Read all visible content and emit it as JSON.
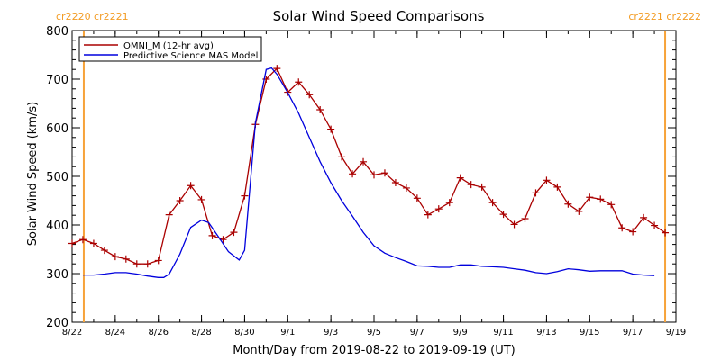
{
  "chart_data": {
    "type": "line",
    "title": "Solar Wind Speed Comparisons",
    "xlabel": "Month/Day from 2019-08-22 to 2019-09-19 (UT)",
    "ylabel": "Solar Wind Speed (km/s)",
    "xlim": [
      "2019-08-22",
      "2019-09-19"
    ],
    "ylim": [
      200,
      800
    ],
    "x_ticks": [
      {
        "x": "2019-08-22",
        "label": "8/22"
      },
      {
        "x": "2019-08-24",
        "label": "8/24"
      },
      {
        "x": "2019-08-26",
        "label": "8/26"
      },
      {
        "x": "2019-08-28",
        "label": "8/28"
      },
      {
        "x": "2019-08-30",
        "label": "8/30"
      },
      {
        "x": "2019-09-01",
        "label": "9/1"
      },
      {
        "x": "2019-09-03",
        "label": "9/3"
      },
      {
        "x": "2019-09-05",
        "label": "9/5"
      },
      {
        "x": "2019-09-07",
        "label": "9/7"
      },
      {
        "x": "2019-09-09",
        "label": "9/9"
      },
      {
        "x": "2019-09-11",
        "label": "9/11"
      },
      {
        "x": "2019-09-13",
        "label": "9/13"
      },
      {
        "x": "2019-09-15",
        "label": "9/15"
      },
      {
        "x": "2019-09-17",
        "label": "9/17"
      },
      {
        "x": "2019-09-19",
        "label": "9/19"
      }
    ],
    "y_ticks": [
      200,
      300,
      400,
      500,
      600,
      700,
      800
    ],
    "series": [
      {
        "name": "OMNI_M (12-hr avg)",
        "color": "#aa0000",
        "marker": "plus",
        "points": [
          [
            "2019-08-22 00:00",
            362
          ],
          [
            "2019-08-22 12:00",
            370
          ],
          [
            "2019-08-23 00:00",
            362
          ],
          [
            "2019-08-23 12:00",
            348
          ],
          [
            "2019-08-24 00:00",
            335
          ],
          [
            "2019-08-24 12:00",
            330
          ],
          [
            "2019-08-25 00:00",
            320
          ],
          [
            "2019-08-25 12:00",
            320
          ],
          [
            "2019-08-26 00:00",
            327
          ],
          [
            "2019-08-26 12:00",
            421
          ],
          [
            "2019-08-27 00:00",
            450
          ],
          [
            "2019-08-27 12:00",
            481
          ],
          [
            "2019-08-28 00:00",
            452
          ],
          [
            "2019-08-28 12:00",
            378
          ],
          [
            "2019-08-29 00:00",
            370
          ],
          [
            "2019-08-29 12:00",
            385
          ],
          [
            "2019-08-30 00:00",
            460
          ],
          [
            "2019-08-30 12:00",
            607
          ],
          [
            "2019-08-31 00:00",
            700
          ],
          [
            "2019-08-31 12:00",
            722
          ],
          [
            "2019-09-01 00:00",
            673
          ],
          [
            "2019-09-01 12:00",
            694
          ],
          [
            "2019-09-02 00:00",
            668
          ],
          [
            "2019-09-02 12:00",
            637
          ],
          [
            "2019-09-03 00:00",
            597
          ],
          [
            "2019-09-03 12:00",
            540
          ],
          [
            "2019-09-04 00:00",
            505
          ],
          [
            "2019-09-04 12:00",
            530
          ],
          [
            "2019-09-05 00:00",
            503
          ],
          [
            "2019-09-05 12:00",
            507
          ],
          [
            "2019-09-06 00:00",
            487
          ],
          [
            "2019-09-06 12:00",
            476
          ],
          [
            "2019-09-07 00:00",
            455
          ],
          [
            "2019-09-07 12:00",
            421
          ],
          [
            "2019-09-08 00:00",
            433
          ],
          [
            "2019-09-08 12:00",
            446
          ],
          [
            "2019-09-09 00:00",
            497
          ],
          [
            "2019-09-09 12:00",
            483
          ],
          [
            "2019-09-10 00:00",
            478
          ],
          [
            "2019-09-10 12:00",
            446
          ],
          [
            "2019-09-11 00:00",
            422
          ],
          [
            "2019-09-11 12:00",
            401
          ],
          [
            "2019-09-12 00:00",
            413
          ],
          [
            "2019-09-12 12:00",
            466
          ],
          [
            "2019-09-13 00:00",
            492
          ],
          [
            "2019-09-13 12:00",
            478
          ],
          [
            "2019-09-14 00:00",
            443
          ],
          [
            "2019-09-14 12:00",
            428
          ],
          [
            "2019-09-15 00:00",
            457
          ],
          [
            "2019-09-15 12:00",
            453
          ],
          [
            "2019-09-16 00:00",
            442
          ],
          [
            "2019-09-16 12:00",
            394
          ],
          [
            "2019-09-17 00:00",
            386
          ],
          [
            "2019-09-17 12:00",
            415
          ],
          [
            "2019-09-18 00:00",
            399
          ],
          [
            "2019-09-18 12:00",
            384
          ]
        ]
      },
      {
        "name": "Predictive Science MAS Model",
        "color": "#0000dd",
        "marker": "none",
        "points": [
          [
            "2019-08-22 12:00",
            297
          ],
          [
            "2019-08-23 00:00",
            297
          ],
          [
            "2019-08-23 12:00",
            299
          ],
          [
            "2019-08-24 00:00",
            302
          ],
          [
            "2019-08-24 12:00",
            302
          ],
          [
            "2019-08-25 00:00",
            299
          ],
          [
            "2019-08-25 12:00",
            295
          ],
          [
            "2019-08-26 00:00",
            292
          ],
          [
            "2019-08-26 06:00",
            292
          ],
          [
            "2019-08-26 12:00",
            299
          ],
          [
            "2019-08-27 00:00",
            340
          ],
          [
            "2019-08-27 12:00",
            395
          ],
          [
            "2019-08-28 00:00",
            410
          ],
          [
            "2019-08-28 08:00",
            405
          ],
          [
            "2019-08-28 18:00",
            378
          ],
          [
            "2019-08-29 06:00",
            345
          ],
          [
            "2019-08-29 18:00",
            328
          ],
          [
            "2019-08-30 00:00",
            348
          ],
          [
            "2019-08-30 12:00",
            610
          ],
          [
            "2019-08-31 00:00",
            720
          ],
          [
            "2019-08-31 06:00",
            723
          ],
          [
            "2019-08-31 12:00",
            710
          ],
          [
            "2019-09-01 00:00",
            672
          ],
          [
            "2019-09-01 12:00",
            630
          ],
          [
            "2019-09-02 00:00",
            580
          ],
          [
            "2019-09-02 12:00",
            530
          ],
          [
            "2019-09-03 00:00",
            487
          ],
          [
            "2019-09-03 12:00",
            450
          ],
          [
            "2019-09-04 00:00",
            418
          ],
          [
            "2019-09-04 12:00",
            385
          ],
          [
            "2019-09-05 00:00",
            357
          ],
          [
            "2019-09-05 12:00",
            342
          ],
          [
            "2019-09-06 00:00",
            333
          ],
          [
            "2019-09-06 12:00",
            325
          ],
          [
            "2019-09-07 00:00",
            316
          ],
          [
            "2019-09-07 12:00",
            315
          ],
          [
            "2019-09-08 00:00",
            313
          ],
          [
            "2019-09-08 12:00",
            313
          ],
          [
            "2019-09-09 00:00",
            318
          ],
          [
            "2019-09-09 12:00",
            318
          ],
          [
            "2019-09-10 00:00",
            315
          ],
          [
            "2019-09-10 12:00",
            314
          ],
          [
            "2019-09-11 00:00",
            313
          ],
          [
            "2019-09-11 12:00",
            310
          ],
          [
            "2019-09-12 00:00",
            307
          ],
          [
            "2019-09-12 12:00",
            302
          ],
          [
            "2019-09-13 00:00",
            300
          ],
          [
            "2019-09-13 12:00",
            304
          ],
          [
            "2019-09-14 00:00",
            310
          ],
          [
            "2019-09-14 12:00",
            308
          ],
          [
            "2019-09-15 00:00",
            305
          ],
          [
            "2019-09-15 12:00",
            306
          ],
          [
            "2019-09-16 00:00",
            306
          ],
          [
            "2019-09-16 12:00",
            306
          ],
          [
            "2019-09-17 00:00",
            299
          ],
          [
            "2019-09-17 12:00",
            297
          ],
          [
            "2019-09-18 00:00",
            296
          ]
        ]
      }
    ],
    "rotation_markers": [
      {
        "x": "2019-08-22 13:00",
        "color": "#f7a33a",
        "labels": [
          "cr2220",
          "cr2221"
        ],
        "label_side": "left"
      },
      {
        "x": "2019-09-18 12:00",
        "color": "#f7a33a",
        "labels": [
          "cr2221",
          "cr2222"
        ],
        "label_side": "right"
      }
    ],
    "legend": {
      "position": "top-left",
      "entries": [
        {
          "label": "OMNI_M (12-hr avg)",
          "color": "#aa0000"
        },
        {
          "label": "Predictive Science MAS Model",
          "color": "#0000dd"
        }
      ]
    },
    "grid": false
  }
}
